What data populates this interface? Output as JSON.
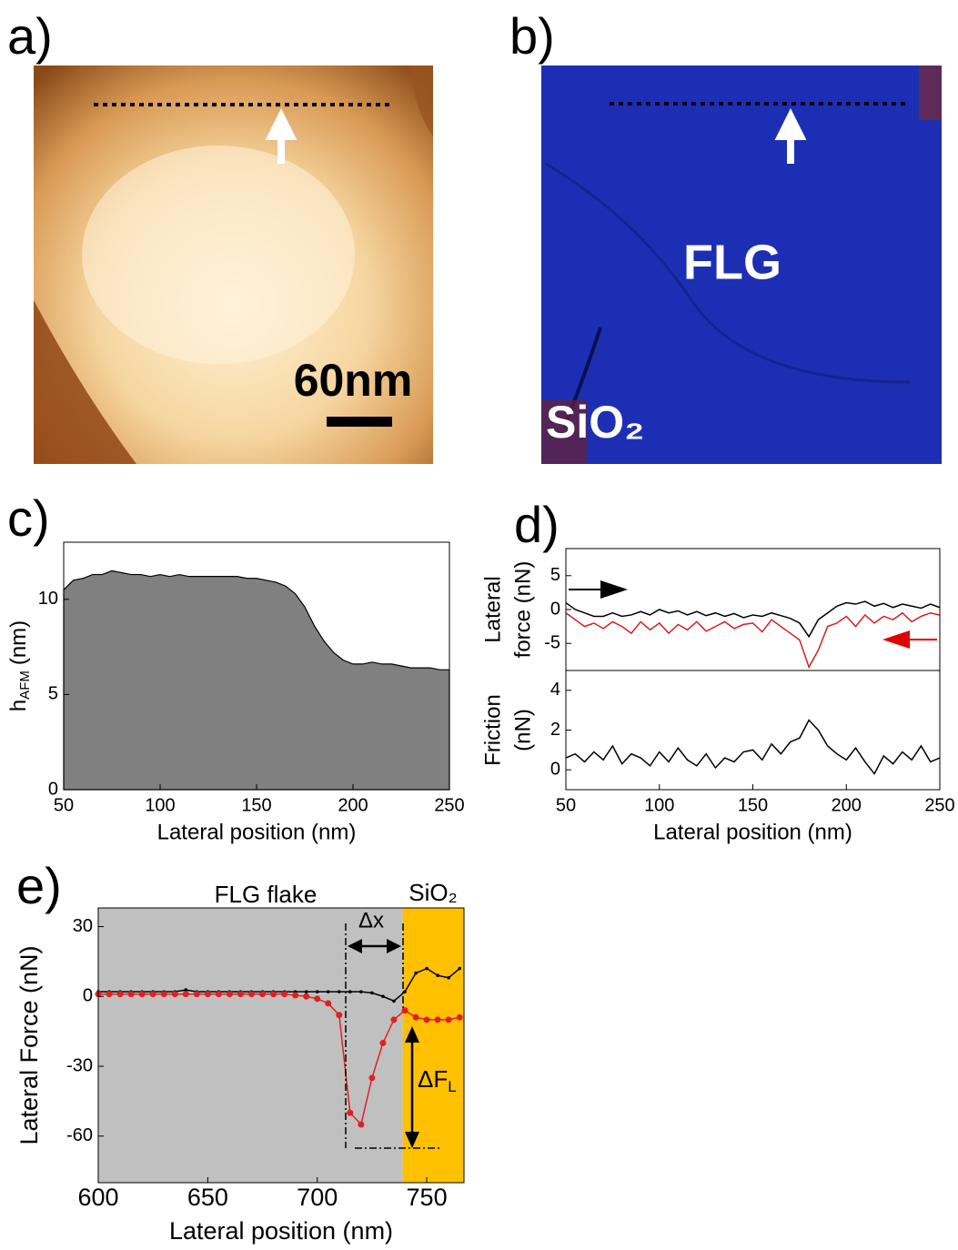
{
  "images": [
    {
      "label": "a)",
      "scale_label": "60nm"
    },
    {
      "label": "b)",
      "labels": [
        "FLG",
        "SiO₂"
      ]
    }
  ],
  "chart_data": [
    {
      "type": "area",
      "panel": "c)",
      "color": "#808080",
      "ylabel": {
        "main": "h",
        "sub": "AFM",
        "unit": "(nm)"
      },
      "xlabel": "Lateral position (nm)",
      "xlim": [
        50,
        250
      ],
      "xticks": [
        50,
        100,
        150,
        200,
        250
      ],
      "ylim": [
        0,
        13
      ],
      "yticks": [
        0,
        5,
        10
      ],
      "x": [
        50,
        55,
        60,
        65,
        70,
        75,
        80,
        85,
        90,
        95,
        100,
        105,
        110,
        115,
        120,
        125,
        130,
        135,
        140,
        145,
        150,
        155,
        160,
        165,
        170,
        175,
        180,
        185,
        190,
        195,
        200,
        205,
        210,
        215,
        220,
        225,
        230,
        235,
        240,
        245,
        250
      ],
      "values": [
        10.5,
        11.0,
        11.1,
        11.3,
        11.3,
        11.5,
        11.4,
        11.3,
        11.3,
        11.2,
        11.3,
        11.2,
        11.3,
        11.2,
        11.2,
        11.2,
        11.2,
        11.2,
        11.2,
        11.1,
        11.1,
        11.0,
        10.9,
        10.7,
        10.3,
        9.6,
        8.6,
        7.8,
        7.2,
        6.8,
        6.6,
        6.6,
        6.7,
        6.6,
        6.6,
        6.5,
        6.4,
        6.4,
        6.4,
        6.3,
        6.3
      ]
    },
    {
      "type": "line",
      "panel": "d)",
      "ylabel_lines": [
        "Lateral",
        "force  (nN)"
      ],
      "xlim": [
        50,
        250
      ],
      "ylim": [
        -9,
        9
      ],
      "yticks": [
        -5,
        0,
        5
      ],
      "x": [
        50,
        55,
        60,
        65,
        70,
        75,
        80,
        85,
        90,
        95,
        100,
        105,
        110,
        115,
        120,
        125,
        130,
        135,
        140,
        145,
        150,
        155,
        160,
        165,
        170,
        175,
        180,
        185,
        190,
        195,
        200,
        205,
        210,
        215,
        220,
        225,
        230,
        235,
        240,
        245,
        250
      ],
      "series": [
        {
          "color": "#000000",
          "values": [
            1,
            0,
            -0.5,
            -1,
            -1,
            -0.5,
            -1,
            -0.8,
            -0.3,
            -0.8,
            0,
            -0.5,
            -0.2,
            -0.8,
            -0.3,
            -0.9,
            -0.5,
            -1,
            -0.6,
            -1.2,
            -0.8,
            -1,
            -0.5,
            -0.9,
            -1.3,
            -2,
            -4,
            -1.5,
            -0.5,
            0.5,
            1,
            0.8,
            1.2,
            0.5,
            0.9,
            0.3,
            0.8,
            0.5,
            0.2,
            0.8,
            0.3
          ]
        },
        {
          "color": "#d42020",
          "values": [
            -0.5,
            -1.5,
            -2.5,
            -2,
            -2.8,
            -1.8,
            -2.5,
            -3.5,
            -1.8,
            -3,
            -2,
            -3.5,
            -2.2,
            -3,
            -1.8,
            -3.2,
            -2.5,
            -1.8,
            -2.8,
            -2.2,
            -2,
            -3.3,
            -1.5,
            -2.5,
            -3.5,
            -4.5,
            -8.5,
            -6,
            -2.5,
            -2,
            -1,
            -2.5,
            -0.8,
            -2,
            -1,
            -1.5,
            -0.5,
            -1.8,
            -1,
            -0.5,
            -0.8
          ]
        }
      ]
    },
    {
      "type": "line",
      "ylabel_lines": [
        "Friction",
        "(nN)"
      ],
      "xlabel": "Lateral position (nm)",
      "xlim": [
        50,
        250
      ],
      "xticks": [
        50,
        100,
        150,
        200,
        250
      ],
      "ylim": [
        -1,
        5
      ],
      "yticks": [
        0,
        2,
        4
      ],
      "x": [
        50,
        55,
        60,
        65,
        70,
        75,
        80,
        85,
        90,
        95,
        100,
        105,
        110,
        115,
        120,
        125,
        130,
        135,
        140,
        145,
        150,
        155,
        160,
        165,
        170,
        175,
        180,
        185,
        190,
        195,
        200,
        205,
        210,
        215,
        220,
        225,
        230,
        235,
        240,
        245,
        250
      ],
      "series": [
        {
          "color": "#000000",
          "values": [
            0.6,
            0.8,
            0.4,
            0.9,
            0.5,
            1.2,
            0.3,
            0.8,
            0.6,
            0.2,
            0.9,
            0.4,
            1.1,
            0.5,
            0.2,
            0.8,
            0.1,
            0.6,
            0.4,
            0.9,
            1.0,
            0.5,
            1.3,
            0.8,
            1.4,
            1.6,
            2.5,
            2.0,
            1.2,
            0.8,
            0.5,
            1.1,
            0.4,
            -0.2,
            0.7,
            0.3,
            0.9,
            0.5,
            1.2,
            0.4,
            0.6
          ]
        }
      ]
    },
    {
      "type": "line",
      "panel": "e)",
      "ylabel": "Lateral Force (nN)",
      "xlabel": "Lateral position (nm)",
      "xlim": [
        600,
        767
      ],
      "xticks": [
        600,
        650,
        700,
        750
      ],
      "ylim": [
        -80,
        38
      ],
      "yticks": [
        -60,
        -30,
        0,
        30
      ],
      "shaded_regions": [
        {
          "xlim": [
            600,
            739
          ],
          "color": "#c0c0c0"
        },
        {
          "xlim": [
            739,
            767
          ],
          "color": "#ffc000"
        }
      ],
      "annotations": {
        "region_left": "FLG flake",
        "region_right": "SiO₂",
        "dx": "Δx",
        "df": "ΔF",
        "df_sub": "L"
      },
      "x": [
        600,
        605,
        610,
        615,
        620,
        625,
        630,
        635,
        640,
        645,
        650,
        655,
        660,
        665,
        670,
        675,
        680,
        685,
        690,
        695,
        700,
        705,
        710,
        715,
        720,
        725,
        730,
        735,
        740,
        745,
        750,
        755,
        760,
        765
      ],
      "series": [
        {
          "color": "#000000",
          "marker_size": 1.8,
          "values": [
            2,
            2,
            2,
            2,
            2,
            2,
            2,
            2,
            2.8,
            2,
            2,
            2,
            2,
            2,
            2,
            2,
            2,
            2,
            2,
            2,
            2,
            2,
            2,
            2,
            2,
            1.5,
            0,
            -2,
            2,
            10,
            12,
            9,
            8,
            12
          ]
        },
        {
          "color": "#e02020",
          "marker_size": 3.5,
          "values": [
            1,
            1,
            1,
            1,
            1,
            1,
            1,
            1,
            1,
            1,
            1,
            1,
            1,
            1,
            1,
            1,
            1,
            1,
            0.5,
            0,
            -1,
            -3,
            -8,
            -50,
            -55,
            -35,
            -20,
            -10,
            -6,
            -9,
            -10,
            -10,
            -10,
            -9
          ]
        }
      ]
    }
  ]
}
